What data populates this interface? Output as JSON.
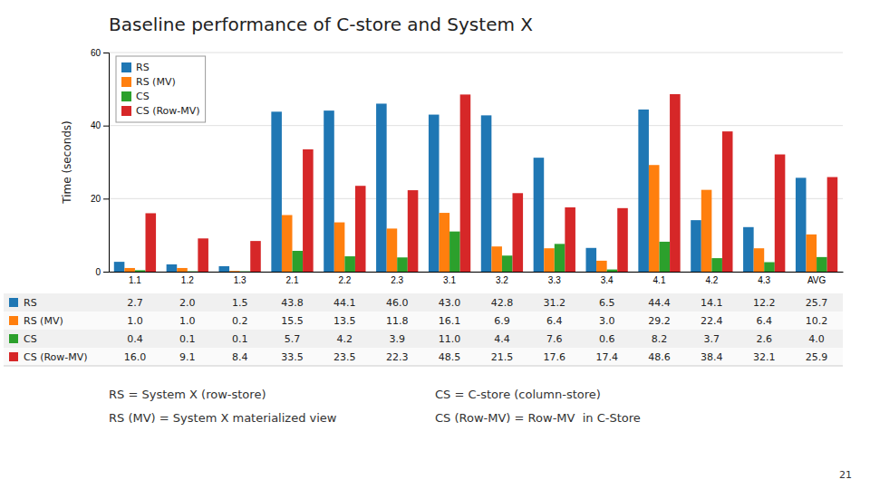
{
  "chart_data": {
    "type": "bar",
    "title": "Baseline performance of C-store and System X",
    "ylabel": "Time (seconds)",
    "categories": [
      "1.1",
      "1.2",
      "1.3",
      "2.1",
      "2.2",
      "2.3",
      "3.1",
      "3.2",
      "3.3",
      "3.4",
      "4.1",
      "4.2",
      "4.3",
      "AVG"
    ],
    "series": [
      {
        "name": "RS",
        "values": [
          2.7,
          2.0,
          1.5,
          43.8,
          44.1,
          46.0,
          43.0,
          42.8,
          31.2,
          6.5,
          44.4,
          14.1,
          12.2,
          25.7
        ],
        "value_labels": [
          "2.7",
          "2.0",
          "1.5",
          "43.8",
          "44.1",
          "46.0",
          "43.0",
          "42.8",
          "31.2",
          "6.5",
          "44.4",
          "14.1",
          "12.2",
          "25.7"
        ]
      },
      {
        "name": "RS (MV)",
        "values": [
          1.0,
          1.0,
          0.2,
          15.5,
          13.5,
          11.8,
          16.1,
          6.9,
          6.4,
          3.0,
          29.2,
          22.4,
          6.4,
          10.2
        ],
        "value_labels": [
          "1.0",
          "1.0",
          "0.2",
          "15.5",
          "13.5",
          "11.8",
          "16.1",
          "6.9",
          "6.4",
          "3.0",
          "29.2",
          "22.4",
          "6.4",
          "10.2"
        ]
      },
      {
        "name": "CS",
        "values": [
          0.4,
          0.1,
          0.1,
          5.7,
          4.2,
          3.9,
          11.0,
          4.4,
          7.6,
          0.6,
          8.2,
          3.7,
          2.6,
          4.0
        ],
        "value_labels": [
          "0.4",
          "0.1",
          "0.1",
          "5.7",
          "4.2",
          "3.9",
          "11.0",
          "4.4",
          "7.6",
          "0.6",
          "8.2",
          "3.7",
          "2.6",
          "4.0"
        ]
      },
      {
        "name": "CS (Row-MV)",
        "values": [
          16.0,
          9.1,
          8.4,
          33.5,
          23.5,
          22.3,
          48.5,
          21.5,
          17.6,
          17.4,
          48.6,
          38.4,
          32.1,
          25.9
        ],
        "value_labels": [
          "16.0",
          "9.1",
          "8.4",
          "33.5",
          "23.5",
          "22.3",
          "48.5",
          "21.5",
          "17.6",
          "17.4",
          "48.6",
          "38.4",
          "32.1",
          "25.9"
        ]
      }
    ],
    "ylim": [
      0,
      60
    ],
    "yticks": [
      0,
      20,
      40,
      60
    ],
    "grid": true,
    "legend": "upper left",
    "data_labels": true,
    "annotations": [
      "RS = System X (row-store)",
      "CS = C-store (column-store)",
      "RS (MV) = System X materialized view",
      "CS (Row-MV) = Row-MV  in C-Store",
      "21"
    ]
  }
}
